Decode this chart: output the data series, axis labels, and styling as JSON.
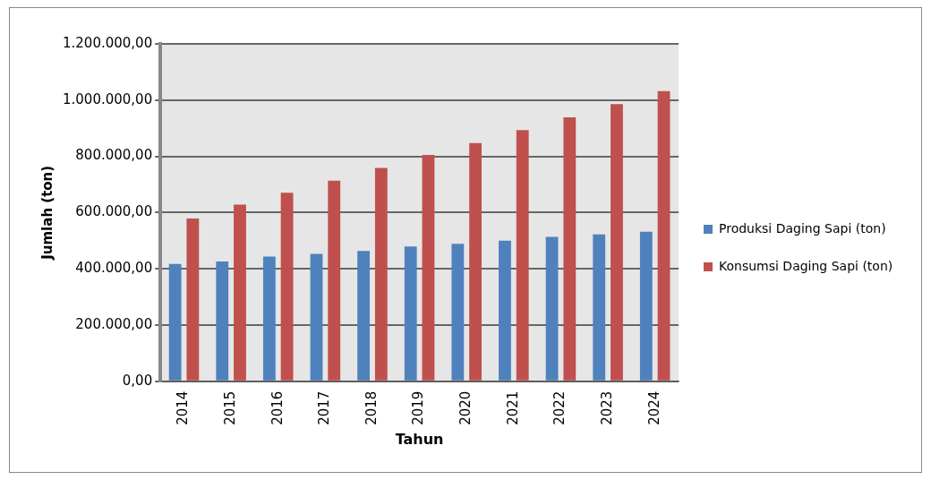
{
  "chart_data": {
    "type": "bar",
    "xlabel": "Tahun",
    "ylabel": "Jumlah (ton)",
    "categories": [
      "2014",
      "2015",
      "2016",
      "2017",
      "2018",
      "2019",
      "2020",
      "2021",
      "2022",
      "2023",
      "2024"
    ],
    "series": [
      {
        "name": "Produksi Daging Sapi (ton)",
        "color": "#4f81bd",
        "values": [
          417000,
          426000,
          443000,
          453000,
          463000,
          479000,
          489000,
          500000,
          513000,
          522000,
          532000
        ]
      },
      {
        "name": "Konsumsi Daging Sapi (ton)",
        "color": "#c0504d",
        "values": [
          579000,
          628000,
          670000,
          713000,
          759000,
          805000,
          847000,
          893000,
          939000,
          986000,
          1032000
        ]
      }
    ],
    "ylim": [
      0,
      1200000
    ],
    "yticks": [
      {
        "value": 0,
        "label": "0,00"
      },
      {
        "value": 200000,
        "label": "200.000,00"
      },
      {
        "value": 400000,
        "label": "400.000,00"
      },
      {
        "value": 600000,
        "label": "600.000,00"
      },
      {
        "value": 800000,
        "label": "800.000,00"
      },
      {
        "value": 1000000,
        "label": "1.000.000,00"
      },
      {
        "value": 1200000,
        "label": "1.200.000,00"
      }
    ],
    "grid": "y",
    "legend": "right"
  }
}
